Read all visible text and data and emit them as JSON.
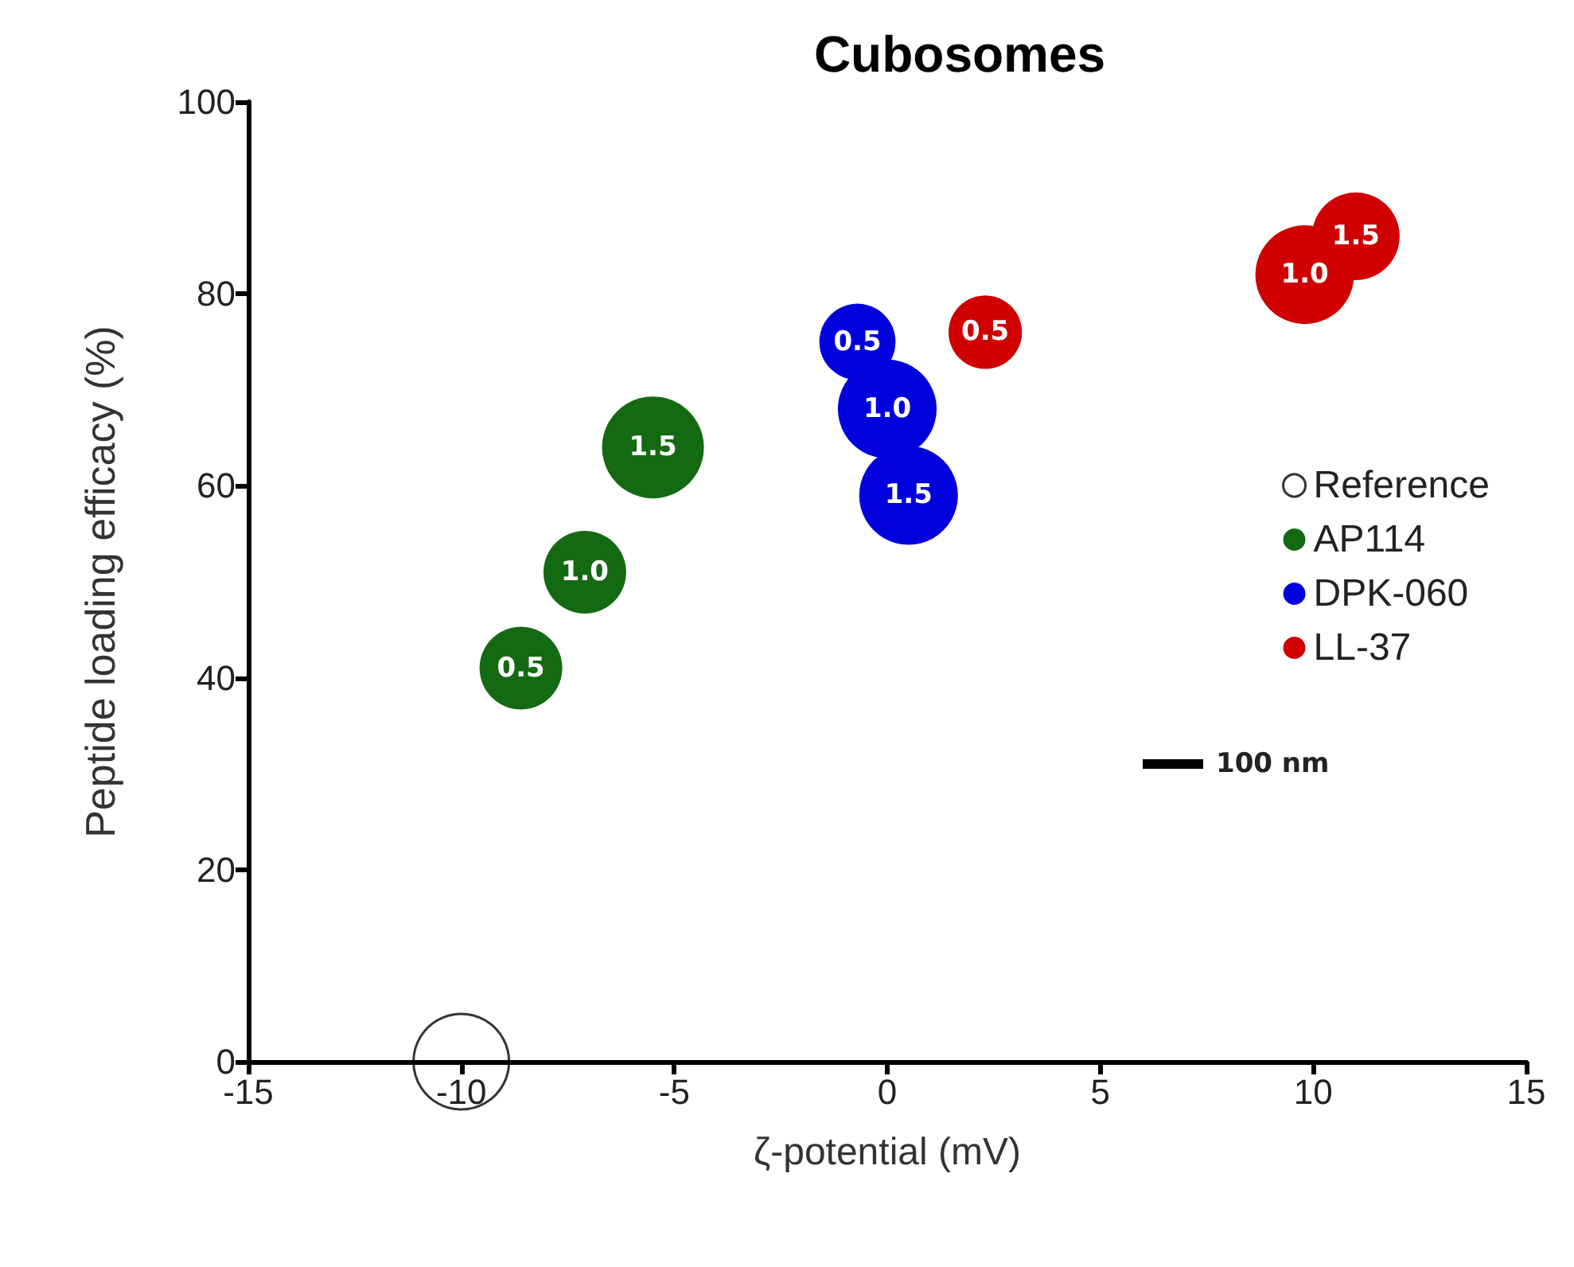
{
  "chart_data": {
    "type": "bubble",
    "title": "Cubosomes",
    "xlabel": "ζ-potential (mV)",
    "ylabel": "Peptide loading efficacy (%)",
    "xlim": [
      -15,
      15
    ],
    "xticks": [
      -15,
      -10,
      -5,
      0,
      5,
      10,
      15
    ],
    "ylim": [
      0,
      100
    ],
    "yticks": [
      0,
      20,
      40,
      60,
      80,
      100
    ],
    "grid": false,
    "legend": "right",
    "marker": "circle",
    "series": [
      {
        "name": "Reference",
        "color": "#000000",
        "x": [
          -10
        ],
        "values": [
          0
        ],
        "sizes": [
          0.88
        ]
      },
      {
        "name": "AP114",
        "color": "#136a13",
        "x": [
          -8.6,
          -7.1,
          -5.5
        ],
        "values": [
          41,
          51,
          64
        ],
        "sizes": [
          0.66,
          0.66,
          1
        ]
      },
      {
        "name": "DPK-060",
        "color": "#0000dd",
        "x": [
          -0.7,
          0.0,
          0.5
        ],
        "values": [
          75,
          68,
          59
        ],
        "sizes": [
          0.56,
          0.94,
          0.94
        ]
      },
      {
        "name": "LL-37",
        "color": "#d00000",
        "x": [
          2.3,
          9.8,
          11.0
        ],
        "values": [
          76,
          82,
          86
        ],
        "sizes": [
          0.52,
          0.94,
          0.74
        ]
      }
    ],
    "annotations": [
      {
        "text": "0.5",
        "x": -8.6,
        "y": 41
      },
      {
        "text": "1.0",
        "x": -7.1,
        "y": 51
      },
      {
        "text": "1.5",
        "x": -5.5,
        "y": 64
      },
      {
        "text": "0.5",
        "x": -0.7,
        "y": 75
      },
      {
        "text": "1.0",
        "x": 0.0,
        "y": 68
      },
      {
        "text": "1.5",
        "x": 0.5,
        "y": 59
      },
      {
        "text": "0.5",
        "x": 2.3,
        "y": 76
      },
      {
        "text": "1.0",
        "x": 9.8,
        "y": 82
      },
      {
        "text": "1.5",
        "x": 11.0,
        "y": 86
      },
      "100 nm"
    ]
  }
}
